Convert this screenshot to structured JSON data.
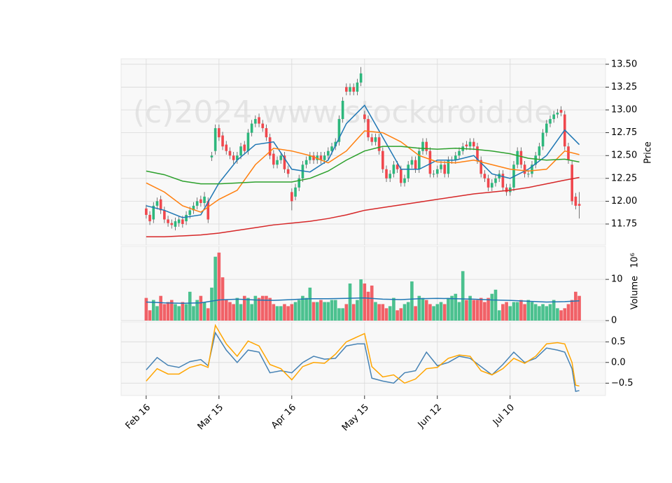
{
  "chart_data": {
    "type": "candlestick",
    "watermark": "(c)2024 www.stockdroid.de",
    "grid": true,
    "x": [
      0,
      1,
      2,
      3,
      4,
      5,
      6,
      7,
      8,
      9,
      10,
      11,
      12,
      13,
      14,
      15,
      16,
      17,
      18,
      19,
      20,
      21,
      22,
      23,
      24,
      25,
      26,
      27,
      28,
      29,
      30,
      31,
      32,
      33,
      34,
      35,
      36,
      37,
      38,
      39,
      40,
      41,
      42,
      43,
      44,
      45,
      46,
      47,
      48,
      49,
      50,
      51,
      52,
      53,
      54,
      55,
      56,
      57,
      58,
      59,
      60,
      61,
      62,
      63,
      64,
      65,
      66,
      67,
      68,
      69,
      70,
      71,
      72,
      73,
      74,
      75,
      76,
      77,
      78,
      79,
      80,
      81,
      82,
      83,
      84,
      85,
      86,
      87,
      88,
      89,
      90,
      91,
      92,
      93,
      94,
      95,
      96,
      97,
      98,
      99,
      100,
      101,
      102,
      103,
      104,
      105,
      106,
      107,
      108,
      109,
      110,
      111,
      112,
      113,
      114,
      115,
      116,
      117,
      118,
      119
    ],
    "xlim": [
      -6.9,
      126.2
    ],
    "xticks": [
      {
        "value": 0,
        "label": "Feb 16"
      },
      {
        "value": 20,
        "label": "Mar 15"
      },
      {
        "value": 40,
        "label": "Apr 16"
      },
      {
        "value": 60,
        "label": "May 15"
      },
      {
        "value": 80,
        "label": "Jun 12"
      },
      {
        "value": 100,
        "label": "Jul 10"
      }
    ],
    "up_color": "#2db77c",
    "down_color": "#f0474d",
    "open": [
      11.92,
      11.85,
      11.8,
      11.95,
      12.02,
      11.9,
      11.8,
      11.76,
      11.72,
      11.76,
      11.8,
      11.78,
      11.85,
      11.9,
      11.95,
      12.02,
      11.98,
      12.0,
      12.48,
      12.55,
      12.8,
      12.72,
      12.62,
      12.55,
      12.5,
      12.45,
      12.5,
      12.62,
      12.55,
      12.75,
      12.85,
      12.92,
      12.85,
      12.8,
      12.7,
      12.52,
      12.4,
      12.45,
      12.5,
      12.35,
      12.1,
      12.05,
      12.15,
      12.25,
      12.4,
      12.45,
      12.5,
      12.45,
      12.5,
      12.45,
      12.5,
      12.55,
      12.6,
      12.65,
      12.9,
      13.25,
      13.2,
      13.25,
      13.2,
      13.3,
      12.95,
      12.9,
      12.7,
      12.65,
      12.7,
      12.55,
      12.35,
      12.25,
      12.3,
      12.4,
      12.35,
      12.2,
      12.25,
      12.4,
      12.45,
      12.35,
      12.55,
      12.65,
      12.55,
      12.3,
      12.3,
      12.35,
      12.4,
      12.3,
      12.45,
      12.45,
      12.5,
      12.55,
      12.62,
      12.6,
      12.65,
      12.6,
      12.45,
      12.3,
      12.25,
      12.15,
      12.2,
      12.25,
      12.3,
      12.15,
      12.1,
      12.15,
      12.4,
      12.55,
      12.4,
      12.3,
      12.3,
      12.4,
      12.5,
      12.6,
      12.75,
      12.85,
      12.9,
      12.95,
      13.0,
      12.95,
      12.6,
      12.4,
      12.05,
      11.97
    ],
    "high": [
      11.96,
      11.89,
      11.99,
      12.04,
      12.06,
      11.94,
      11.84,
      11.8,
      11.82,
      11.84,
      11.84,
      11.89,
      11.94,
      11.99,
      12.04,
      12.06,
      12.1,
      12.04,
      12.54,
      12.84,
      12.84,
      12.76,
      12.66,
      12.59,
      12.54,
      12.54,
      12.64,
      12.66,
      12.79,
      12.89,
      12.94,
      12.96,
      12.89,
      12.84,
      12.74,
      12.56,
      12.49,
      12.54,
      12.54,
      12.39,
      12.14,
      12.19,
      12.29,
      12.44,
      12.49,
      12.54,
      12.54,
      12.54,
      12.54,
      12.54,
      12.59,
      12.64,
      12.69,
      12.94,
      13.14,
      13.29,
      13.29,
      13.29,
      13.34,
      13.47,
      12.99,
      12.94,
      12.74,
      12.74,
      12.74,
      12.59,
      12.39,
      12.34,
      12.44,
      12.44,
      12.39,
      12.29,
      12.44,
      12.49,
      12.49,
      12.59,
      12.69,
      12.69,
      12.59,
      12.34,
      12.39,
      12.44,
      12.44,
      12.49,
      12.49,
      12.54,
      12.59,
      12.64,
      12.66,
      12.69,
      12.69,
      12.64,
      12.49,
      12.34,
      12.29,
      12.24,
      12.29,
      12.34,
      12.34,
      12.19,
      12.19,
      12.44,
      12.59,
      12.59,
      12.44,
      12.34,
      12.44,
      12.54,
      12.64,
      12.79,
      12.89,
      12.94,
      12.99,
      13.01,
      13.04,
      12.99,
      12.64,
      12.44,
      12.09,
      12.1
    ],
    "low": [
      11.81,
      11.74,
      11.76,
      11.91,
      11.86,
      11.76,
      11.72,
      11.7,
      11.68,
      11.72,
      11.71,
      11.74,
      11.81,
      11.86,
      11.91,
      11.94,
      11.94,
      11.76,
      12.44,
      12.51,
      12.66,
      12.56,
      12.51,
      12.46,
      12.41,
      12.41,
      12.46,
      12.51,
      12.51,
      12.71,
      12.81,
      12.81,
      12.76,
      12.66,
      12.46,
      12.36,
      12.36,
      12.41,
      12.31,
      12.26,
      11.9,
      12.01,
      12.11,
      12.21,
      12.36,
      12.41,
      12.41,
      12.41,
      12.41,
      12.41,
      12.46,
      12.51,
      12.56,
      12.61,
      12.86,
      13.16,
      13.16,
      13.16,
      13.16,
      13.26,
      12.86,
      12.66,
      12.61,
      12.61,
      12.51,
      12.31,
      12.21,
      12.21,
      12.26,
      12.31,
      12.16,
      12.16,
      12.21,
      12.36,
      12.31,
      12.31,
      12.51,
      12.51,
      12.26,
      12.26,
      12.26,
      12.31,
      12.26,
      12.26,
      12.41,
      12.41,
      12.46,
      12.51,
      12.56,
      12.56,
      12.56,
      12.41,
      12.26,
      12.21,
      12.11,
      12.11,
      12.16,
      12.21,
      12.11,
      12.06,
      12.06,
      12.11,
      12.36,
      12.36,
      12.26,
      12.26,
      12.26,
      12.36,
      12.46,
      12.56,
      12.71,
      12.81,
      12.86,
      12.91,
      12.93,
      12.56,
      12.41,
      11.96,
      11.91,
      11.81
    ],
    "close": [
      11.85,
      11.78,
      11.95,
      12.0,
      11.9,
      11.8,
      11.76,
      11.74,
      11.78,
      11.8,
      11.75,
      11.85,
      11.9,
      11.95,
      12.0,
      11.98,
      12.05,
      11.8,
      12.5,
      12.8,
      12.7,
      12.6,
      12.55,
      12.5,
      12.45,
      12.5,
      12.6,
      12.55,
      12.75,
      12.85,
      12.9,
      12.85,
      12.8,
      12.7,
      12.5,
      12.4,
      12.45,
      12.5,
      12.35,
      12.3,
      12.0,
      12.15,
      12.25,
      12.4,
      12.45,
      12.5,
      12.45,
      12.5,
      12.45,
      12.5,
      12.55,
      12.6,
      12.65,
      12.9,
      13.1,
      13.2,
      13.25,
      13.2,
      13.3,
      13.4,
      12.9,
      12.7,
      12.65,
      12.7,
      12.55,
      12.35,
      12.25,
      12.3,
      12.4,
      12.35,
      12.2,
      12.25,
      12.4,
      12.45,
      12.35,
      12.55,
      12.65,
      12.55,
      12.3,
      12.3,
      12.35,
      12.4,
      12.3,
      12.45,
      12.45,
      12.5,
      12.55,
      12.6,
      12.6,
      12.65,
      12.6,
      12.45,
      12.3,
      12.25,
      12.15,
      12.2,
      12.25,
      12.3,
      12.15,
      12.1,
      12.15,
      12.4,
      12.55,
      12.4,
      12.3,
      12.3,
      12.4,
      12.5,
      12.6,
      12.75,
      12.85,
      12.9,
      12.95,
      12.97,
      12.97,
      12.6,
      12.45,
      12.0,
      11.95,
      11.95
    ],
    "ylim": [
      11.52,
      13.56
    ],
    "yticks": [
      11.75,
      {
        "value": 12.0,
        "label": "12.00"
      },
      12.25,
      {
        "value": 12.5,
        "label": "12.50"
      },
      12.75,
      {
        "value": 13.0,
        "label": "13.00"
      },
      13.25,
      {
        "value": 13.5,
        "label": "13.50"
      }
    ],
    "ylabel": "Price",
    "moving_averages": [
      {
        "color": "#1f77b4",
        "x": [
          0,
          5,
          10,
          15,
          20,
          25,
          30,
          35,
          40,
          45,
          50,
          55,
          60,
          65,
          70,
          75,
          80,
          85,
          90,
          95,
          100,
          105,
          110,
          115,
          119
        ],
        "values": [
          11.95,
          11.9,
          11.82,
          11.85,
          12.2,
          12.45,
          12.62,
          12.65,
          12.35,
          12.32,
          12.45,
          12.85,
          13.05,
          12.7,
          12.35,
          12.35,
          12.45,
          12.45,
          12.5,
          12.3,
          12.25,
          12.35,
          12.5,
          12.78,
          12.62
        ]
      },
      {
        "color": "#ff7f0e",
        "x": [
          0,
          5,
          10,
          15,
          20,
          25,
          30,
          35,
          40,
          45,
          50,
          55,
          60,
          65,
          70,
          75,
          80,
          85,
          90,
          95,
          100,
          105,
          110,
          115,
          119
        ],
        "values": [
          12.2,
          12.1,
          11.95,
          11.88,
          12.02,
          12.12,
          12.4,
          12.58,
          12.55,
          12.5,
          12.42,
          12.55,
          12.77,
          12.75,
          12.65,
          12.5,
          12.43,
          12.42,
          12.45,
          12.4,
          12.35,
          12.33,
          12.35,
          12.55,
          12.51
        ]
      },
      {
        "color": "#2ca02c",
        "x": [
          0,
          5,
          10,
          15,
          20,
          25,
          30,
          35,
          40,
          45,
          50,
          55,
          60,
          65,
          70,
          75,
          80,
          85,
          90,
          95,
          100,
          105,
          110,
          115,
          119
        ],
        "values": [
          12.33,
          12.29,
          12.22,
          12.19,
          12.19,
          12.2,
          12.21,
          12.21,
          12.21,
          12.25,
          12.33,
          12.45,
          12.55,
          12.6,
          12.6,
          12.58,
          12.57,
          12.58,
          12.57,
          12.55,
          12.52,
          12.47,
          12.45,
          12.46,
          12.43
        ]
      },
      {
        "color": "#d62728",
        "x": [
          0,
          5,
          10,
          15,
          20,
          25,
          30,
          35,
          40,
          45,
          50,
          55,
          60,
          65,
          70,
          75,
          80,
          85,
          90,
          95,
          100,
          105,
          110,
          115,
          119
        ],
        "values": [
          11.61,
          11.61,
          11.62,
          11.63,
          11.65,
          11.68,
          11.71,
          11.74,
          11.76,
          11.78,
          11.81,
          11.85,
          11.9,
          11.93,
          11.96,
          11.99,
          12.02,
          12.05,
          12.08,
          12.1,
          12.12,
          12.15,
          12.19,
          12.23,
          12.26
        ]
      }
    ],
    "volume": {
      "ylabel": "Volume",
      "offset_label": "10⁶",
      "ylim": [
        0,
        18
      ],
      "yticks": [
        0,
        10
      ],
      "values": [
        5.5,
        2.5,
        5,
        3.5,
        6,
        4,
        4.5,
        5,
        4,
        3.5,
        4.5,
        4,
        7,
        3.5,
        5,
        6,
        4.5,
        3,
        8,
        15.5,
        16.5,
        10.5,
        5,
        4.5,
        4,
        5.5,
        4,
        6,
        5.5,
        4,
        6,
        5.5,
        6,
        6,
        5.5,
        4,
        3.5,
        3.5,
        4,
        3.5,
        4,
        4.5,
        5,
        6,
        5.5,
        8,
        4.5,
        4.5,
        5,
        4.5,
        4.5,
        5,
        5,
        3,
        3,
        4,
        9,
        4,
        5,
        10,
        9,
        7,
        8.5,
        4.5,
        4,
        4,
        3,
        3.5,
        5.5,
        2.5,
        3,
        4,
        4.5,
        9.5,
        3.5,
        6,
        5.5,
        5,
        4,
        3.5,
        4,
        4.5,
        4,
        5.5,
        6,
        6.5,
        4.5,
        12,
        5,
        6,
        5,
        5,
        5.5,
        4.5,
        5.5,
        6.5,
        7.5,
        2.5,
        4,
        4.5,
        3.5,
        4.5,
        4.5,
        5,
        4,
        5,
        4.5,
        4,
        3.5,
        4,
        3.5,
        4,
        5,
        3,
        2.5,
        3,
        4,
        5,
        7,
        6
      ],
      "ma": {
        "color": "#1f77b4",
        "x": [
          0,
          5,
          10,
          15,
          20,
          25,
          30,
          35,
          40,
          45,
          50,
          55,
          60,
          65,
          70,
          75,
          80,
          85,
          90,
          95,
          100,
          105,
          110,
          115,
          119
        ],
        "values": [
          4.5,
          4.3,
          4.2,
          4.3,
          5,
          5.2,
          5,
          4.9,
          5.1,
          5.3,
          5.3,
          5.4,
          5.5,
          5.2,
          5.1,
          5.3,
          5.4,
          5.3,
          5.2,
          5,
          4.9,
          4.7,
          4.5,
          4.6,
          4.8
        ]
      }
    },
    "oscillator": {
      "ylim": [
        -0.8,
        0.98
      ],
      "yticks": [
        {
          "value": -0.5,
          "label": "−0.5"
        },
        {
          "value": 0,
          "label": "0.0"
        },
        0.5
      ],
      "series": [
        {
          "color": "#4682b4",
          "x": [
            0,
            3,
            6,
            9,
            12,
            15,
            17,
            19,
            22,
            25,
            28,
            31,
            34,
            37,
            40,
            43,
            46,
            49,
            52,
            55,
            58,
            60,
            62,
            65,
            68,
            71,
            74,
            77,
            80,
            83,
            86,
            89,
            92,
            95,
            98,
            101,
            104,
            107,
            110,
            113,
            115,
            117,
            118,
            119
          ],
          "values": [
            -0.18,
            0.12,
            -0.07,
            -0.12,
            0.02,
            0.07,
            -0.08,
            0.72,
            0.3,
            0.0,
            0.3,
            0.25,
            -0.25,
            -0.2,
            -0.25,
            0.0,
            0.15,
            0.08,
            0.1,
            0.4,
            0.45,
            0.45,
            -0.38,
            -0.45,
            -0.5,
            -0.25,
            -0.2,
            0.25,
            -0.08,
            0.0,
            0.15,
            0.1,
            -0.1,
            -0.3,
            -0.05,
            0.25,
            0.0,
            0.1,
            0.35,
            0.3,
            0.25,
            -0.15,
            -0.7,
            -0.68
          ]
        },
        {
          "color": "#ffa500",
          "x": [
            0,
            3,
            6,
            9,
            12,
            15,
            17,
            19,
            22,
            25,
            28,
            31,
            34,
            37,
            40,
            43,
            46,
            49,
            52,
            55,
            58,
            60,
            62,
            65,
            68,
            71,
            74,
            77,
            80,
            83,
            86,
            89,
            92,
            95,
            98,
            101,
            104,
            107,
            110,
            113,
            115,
            117,
            118,
            119
          ],
          "values": [
            -0.45,
            -0.15,
            -0.28,
            -0.28,
            -0.12,
            -0.05,
            -0.12,
            0.9,
            0.45,
            0.15,
            0.52,
            0.4,
            -0.05,
            -0.15,
            -0.42,
            -0.1,
            0.0,
            -0.02,
            0.2,
            0.5,
            0.62,
            0.7,
            -0.1,
            -0.35,
            -0.3,
            -0.5,
            -0.4,
            -0.15,
            -0.12,
            0.1,
            0.18,
            0.15,
            -0.2,
            -0.3,
            -0.15,
            0.1,
            -0.02,
            0.15,
            0.45,
            0.48,
            0.45,
            0.0,
            -0.55,
            -0.57
          ]
        }
      ]
    }
  }
}
